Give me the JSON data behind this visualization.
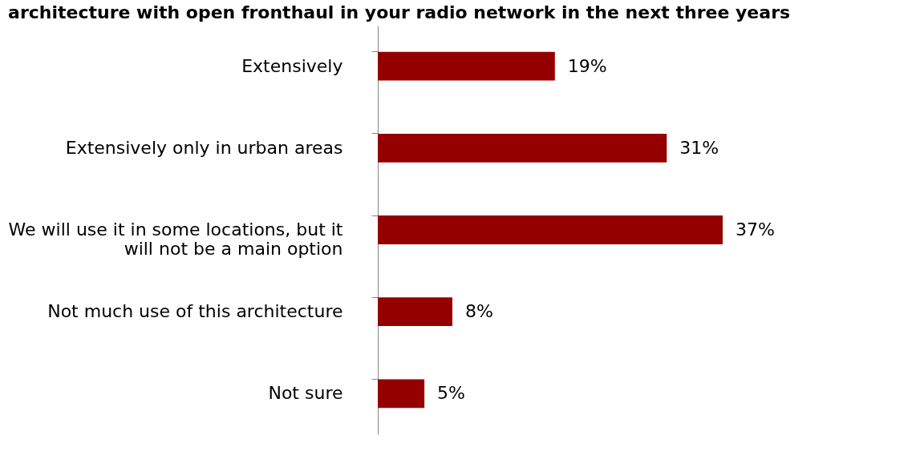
{
  "chart_data": {
    "type": "bar",
    "orientation": "horizontal",
    "title": "architecture with open fronthaul in your radio network in the next three years",
    "categories": [
      "Extensively",
      "Extensively only in urban areas",
      "We will use it in some locations, but it\nwill not be a main option",
      "Not much use of this architecture",
      "Not sure"
    ],
    "values": [
      19,
      31,
      37,
      8,
      5
    ],
    "value_labels": [
      "19%",
      "31%",
      "37%",
      "8%",
      "5%"
    ],
    "color": "#940000",
    "grid": false
  }
}
